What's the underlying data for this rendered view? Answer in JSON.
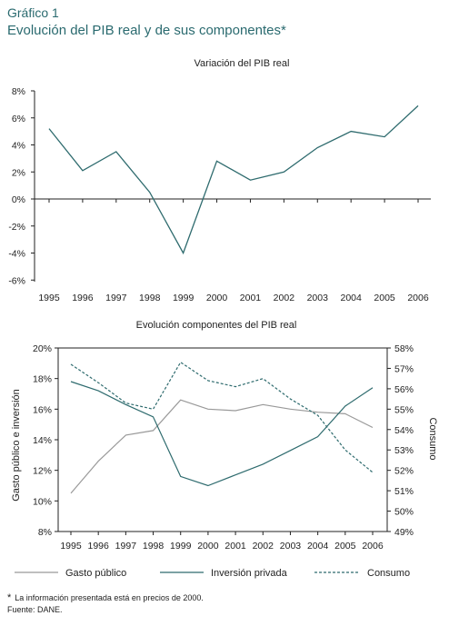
{
  "header": {
    "figure_label": "Gráfico 1",
    "figure_title": "Evolución del PIB real y de sus componentes*"
  },
  "chart_data": [
    {
      "type": "line",
      "title": "Variación del PIB real",
      "x": [
        "1995",
        "1996",
        "1997",
        "1998",
        "1999",
        "2000",
        "2001",
        "2002",
        "2003",
        "2004",
        "2005",
        "2006"
      ],
      "y_ticks": [
        "8%",
        "6%",
        "4%",
        "2%",
        "0%",
        "-2%",
        "-4%",
        "-6%"
      ],
      "ylim": [
        -6,
        8
      ],
      "series": [
        {
          "values": [
            5.2,
            2.1,
            3.5,
            0.5,
            -4.0,
            2.8,
            1.4,
            2.0,
            3.8,
            5.0,
            4.6,
            6.9
          ],
          "color": "#2e6b6e"
        }
      ]
    },
    {
      "type": "line",
      "title": "Evolución componentes del PIB real",
      "x": [
        "1995",
        "1996",
        "1997",
        "1998",
        "1999",
        "2000",
        "2001",
        "2002",
        "2003",
        "2004",
        "2005",
        "2006"
      ],
      "ylabel_left": "Gasto público e inversión",
      "ylabel_right": "Consumo",
      "y_left_ticks": [
        "20%",
        "18%",
        "16%",
        "14%",
        "12%",
        "10%",
        "8%"
      ],
      "y_right_ticks": [
        "58%",
        "57%",
        "56%",
        "55%",
        "54%",
        "53%",
        "52%",
        "51%",
        "50%",
        "49%"
      ],
      "ylim_left": [
        8,
        20
      ],
      "ylim_right": [
        49,
        58
      ],
      "series": [
        {
          "name": "Gasto público",
          "axis": "left",
          "style": "solid",
          "color": "#999999",
          "values": [
            10.5,
            12.6,
            14.3,
            14.6,
            16.6,
            16.0,
            15.9,
            16.3,
            16.0,
            15.8,
            15.7,
            14.8
          ]
        },
        {
          "name": "Inversión privada",
          "axis": "left",
          "style": "solid",
          "color": "#2e6b6e",
          "values": [
            17.8,
            17.2,
            16.3,
            15.5,
            11.6,
            11.0,
            11.7,
            12.4,
            13.3,
            14.2,
            16.2,
            17.4
          ]
        },
        {
          "name": "Consumo",
          "axis": "right",
          "style": "dashed",
          "color": "#2e6b6e",
          "values": [
            57.2,
            56.3,
            55.3,
            55.0,
            57.3,
            56.4,
            56.1,
            56.5,
            55.5,
            54.7,
            53.0,
            51.9
          ]
        }
      ]
    }
  ],
  "footnotes": {
    "asterisk": "*",
    "note": "La información presentada está en precios de 2000.",
    "source": "Fuente: DANE."
  }
}
